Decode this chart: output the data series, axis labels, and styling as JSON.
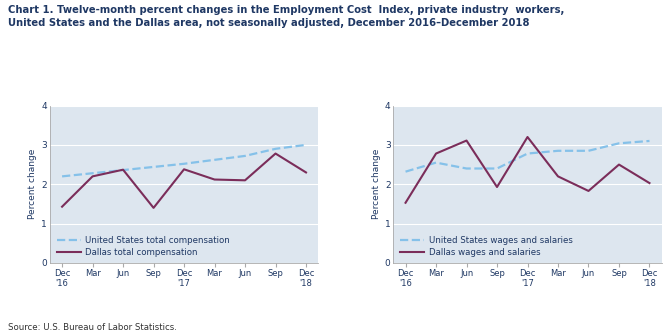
{
  "title_line1": "Chart 1. Twelve-month percent changes in the Employment Cost  Index, private industry  workers,",
  "title_line2": "United States and the Dallas area, not seasonally adjusted, December 2016–December 2018",
  "ylabel": "Percent change",
  "source": "Source: U.S. Bureau of Labor Statistics.",
  "us_total_comp": [
    2.2,
    2.28,
    2.36,
    2.44,
    2.52,
    2.62,
    2.72,
    2.9,
    3.0
  ],
  "dallas_total_comp": [
    1.43,
    2.2,
    2.37,
    1.4,
    2.38,
    2.12,
    2.1,
    2.78,
    2.3
  ],
  "us_wages": [
    2.32,
    2.55,
    2.4,
    2.4,
    2.78,
    2.85,
    2.85,
    3.04,
    3.1
  ],
  "dallas_wages": [
    1.53,
    2.78,
    3.11,
    1.93,
    3.2,
    2.2,
    1.83,
    2.5,
    2.03
  ],
  "legend1_line1": "United States total compensation",
  "legend1_line2": "Dallas total compensation",
  "legend2_line1": "United States wages and salaries",
  "legend2_line2": "Dallas wages and salaries",
  "us_color": "#85C1E9",
  "dallas_color": "#7B2D5A",
  "ylim": [
    0.0,
    4.0
  ],
  "yticks": [
    0.0,
    1.0,
    2.0,
    3.0,
    4.0
  ],
  "bg_color": "#DDE6EF",
  "fig_bg": "#FFFFFF",
  "title_color": "#1F3864",
  "axis_color": "#1F3864",
  "source_color": "#333333",
  "grid_color": "#FFFFFF",
  "spine_color": "#AAAAAA"
}
